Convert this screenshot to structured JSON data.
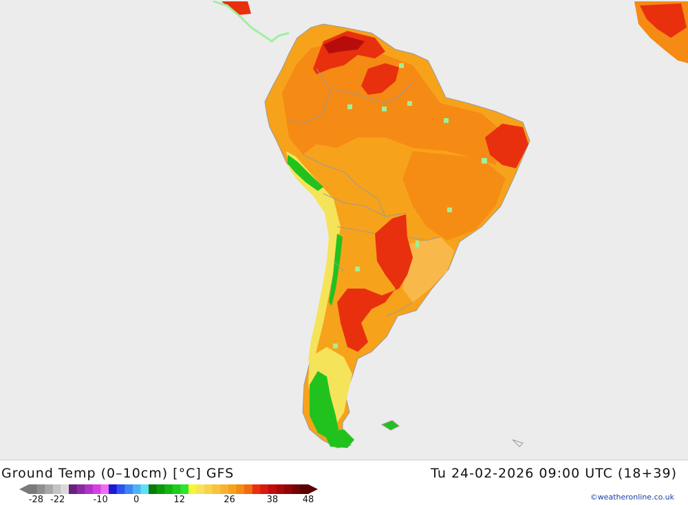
{
  "map": {
    "title": "Ground Temp (0–10cm) [°C] GFS",
    "valid_time": "Tu 24-02-2026 09:00 UTC (18+39)",
    "credit": "©weatheronline.co.uk",
    "region": "South America",
    "colors": {
      "ocean": "#ececec",
      "warm_orange": "#f7a21b",
      "orange": "#f58a14",
      "light_orange": "#f9b94a",
      "red": "#e81e10",
      "dark_red": "#b80c0c",
      "yellow": "#f5e35a",
      "green": "#21c21e",
      "light_green": "#9ef09a",
      "coast": "#9a9a9a"
    }
  },
  "legend": {
    "tick_labels": [
      "-28",
      "-22",
      "-10",
      "0",
      "12",
      "26",
      "38",
      "48"
    ],
    "tick_values": [
      -28,
      -22,
      -10,
      0,
      12,
      26,
      38,
      48
    ],
    "swatches": [
      "#7a7a7a",
      "#8f8f8f",
      "#a8a8a8",
      "#c4c4c4",
      "#dadada",
      "#6a1e7d",
      "#8a2aa6",
      "#b033c8",
      "#d63fe0",
      "#f06cf0",
      "#1a1ad6",
      "#2d52f0",
      "#3b86f5",
      "#4fb0f7",
      "#5fe0f5",
      "#077d07",
      "#0c9a0c",
      "#14b414",
      "#1ecb1e",
      "#2ee52e",
      "#f5f53a",
      "#f5e35a",
      "#f8d24a",
      "#f9c23f",
      "#f9b134",
      "#f7a21b",
      "#f58a14",
      "#f26a12",
      "#e8300f",
      "#d81a0f",
      "#c20c0c",
      "#a80808",
      "#8e0606",
      "#740404",
      "#5a0202"
    ]
  }
}
